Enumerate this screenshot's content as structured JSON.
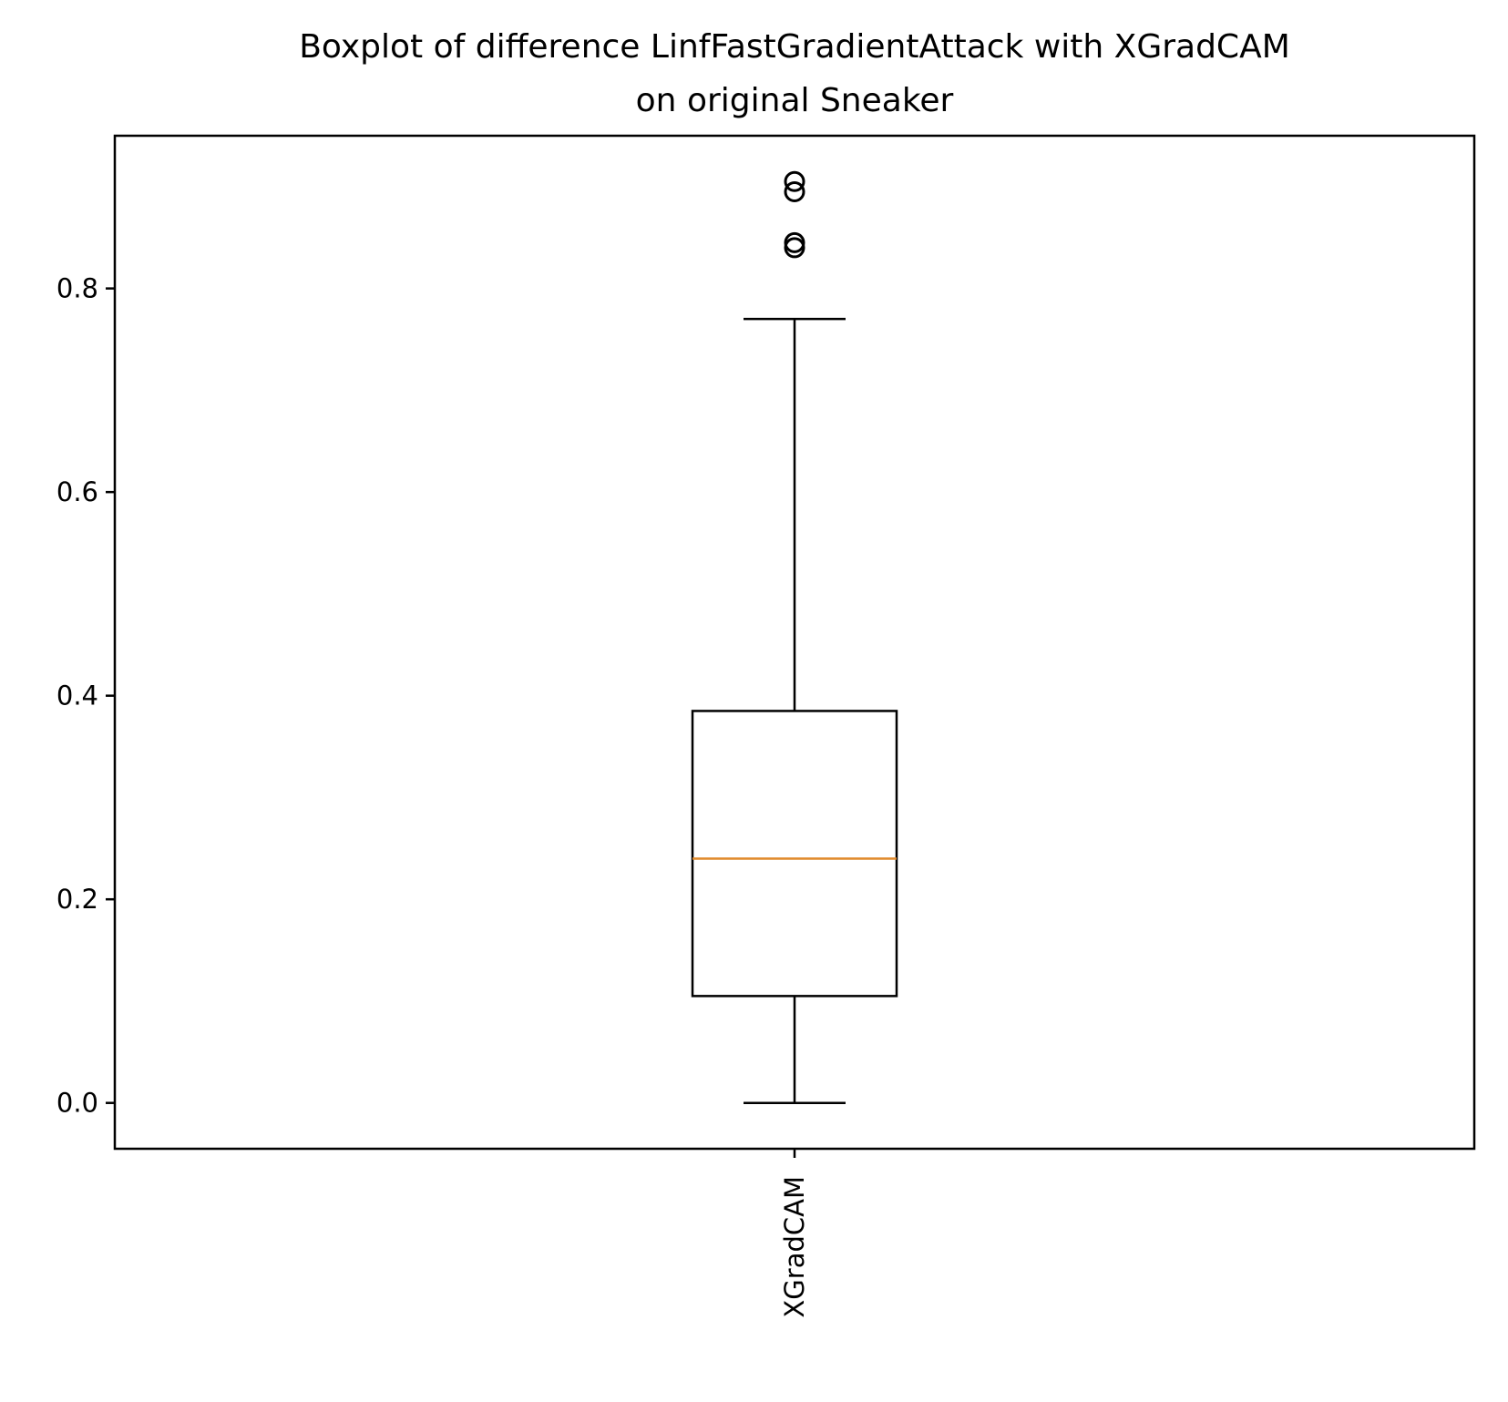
{
  "chart_data": {
    "type": "boxplot",
    "title_lines": [
      "Boxplot of difference LinfFastGradientAttack with XGradCAM",
      "on original Sneaker"
    ],
    "xlabel": "",
    "ylabel": "",
    "categories": [
      "XGradCAM"
    ],
    "ylim": [
      -0.045,
      0.95
    ],
    "yticks": [
      0.0,
      0.2,
      0.4,
      0.6,
      0.8
    ],
    "ytick_labels": [
      "0.0",
      "0.2",
      "0.4",
      "0.6",
      "0.8"
    ],
    "boxes": [
      {
        "category": "XGradCAM",
        "whisker_low": 0.0,
        "q1": 0.105,
        "median": 0.24,
        "q3": 0.385,
        "whisker_high": 0.77,
        "outliers": [
          0.905,
          0.895,
          0.845,
          0.84
        ]
      }
    ],
    "grid": false,
    "legend": "none",
    "colors": {
      "box": "#000000",
      "median": "#e08a2c",
      "outlier": "#000000"
    }
  }
}
